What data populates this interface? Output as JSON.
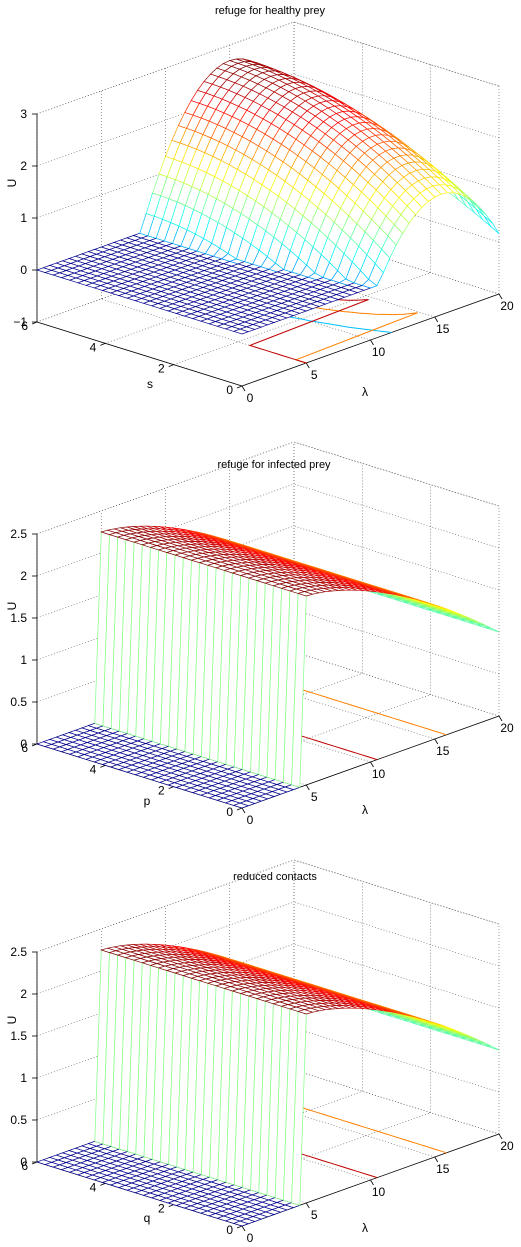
{
  "chart_data": [
    {
      "type": "surface",
      "title": "refuge for healthy prey",
      "xlabel": "λ",
      "ylabel": "s",
      "zlabel": "U",
      "x_ticks": [
        "0",
        "5",
        "10",
        "15",
        "20"
      ],
      "y_ticks": [
        "0",
        "2",
        "4",
        "6"
      ],
      "z_ticks": [
        "−1",
        "0",
        "1",
        "2",
        "3"
      ],
      "xlim": [
        0,
        20
      ],
      "ylim": [
        0,
        6
      ],
      "zlim": [
        -1,
        3
      ],
      "grid": true,
      "colormap": "jet",
      "threshold_lambda": 5,
      "below_threshold_value": 0,
      "peak_value": 2.7,
      "peak_lambda": 15,
      "edge_value_at_lambda_max": 1.3,
      "low_s_edge_value": 0.8,
      "contour_lines": [
        {
          "value": 0.5,
          "color": "#00c0ff"
        },
        {
          "value": 1.5,
          "color": "#ff8000"
        },
        {
          "value": 2.0,
          "color": "#c00000"
        }
      ]
    },
    {
      "type": "surface",
      "title": "refuge for infected prey",
      "xlabel": "λ",
      "ylabel": "p",
      "zlabel": "U",
      "x_ticks": [
        "0",
        "5",
        "10",
        "15",
        "20"
      ],
      "y_ticks": [
        "0",
        "2",
        "4",
        "6"
      ],
      "z_ticks": [
        "0",
        "0.5",
        "1",
        "1.5",
        "2",
        "2.5"
      ],
      "xlim": [
        0,
        20
      ],
      "ylim": [
        0,
        6
      ],
      "zlim": [
        0,
        2.5
      ],
      "grid": true,
      "colormap": "jet",
      "threshold_lambda": 5,
      "below_threshold_value": 0,
      "peak_value": 2.25,
      "value_at_lambda_max": 1.0,
      "contour_lines": [
        {
          "value": 1.0,
          "color": "#ffc000"
        },
        {
          "value": 1.5,
          "color": "#ff8000"
        },
        {
          "value": 2.0,
          "color": "#c00000"
        }
      ]
    },
    {
      "type": "surface",
      "title": "reduced contacts",
      "xlabel": "λ",
      "ylabel": "q",
      "zlabel": "U",
      "x_ticks": [
        "0",
        "5",
        "10",
        "15",
        "20"
      ],
      "y_ticks": [
        "0",
        "2",
        "4",
        "6"
      ],
      "z_ticks": [
        "0",
        "0.5",
        "1",
        "1.5",
        "2",
        "2.5"
      ],
      "xlim": [
        0,
        20
      ],
      "ylim": [
        0,
        6
      ],
      "zlim": [
        0,
        2.5
      ],
      "grid": true,
      "colormap": "jet",
      "threshold_lambda": 5,
      "below_threshold_value": 0,
      "peak_value": 2.25,
      "value_at_lambda_max": 1.0,
      "contour_lines": [
        {
          "value": 1.0,
          "color": "#ffc000"
        },
        {
          "value": 1.5,
          "color": "#ff8000"
        },
        {
          "value": 2.0,
          "color": "#c00000"
        }
      ]
    }
  ]
}
